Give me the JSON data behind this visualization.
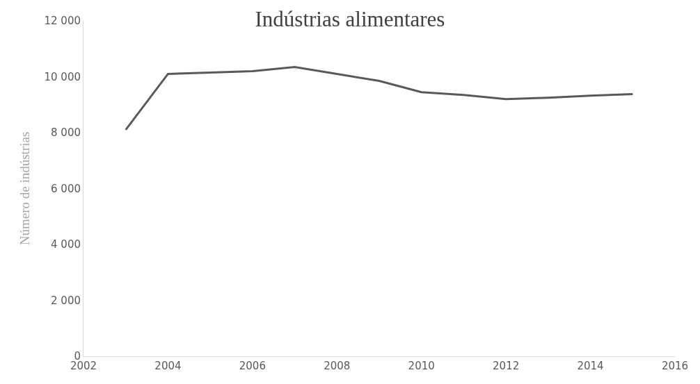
{
  "chart_data": {
    "type": "line",
    "title": "Indústrias alimentares",
    "ylabel": "Número de indústrias",
    "x": [
      2003,
      2004,
      2005,
      2006,
      2007,
      2008,
      2009,
      2010,
      2011,
      2012,
      2013,
      2014,
      2015
    ],
    "series": [
      {
        "color": "#595959",
        "values": [
          8100,
          10100,
          10150,
          10200,
          10350,
          10100,
          9850,
          9450,
          9350,
          9200,
          9250,
          9320,
          9380
        ]
      }
    ],
    "xlim": [
      2002,
      2016
    ],
    "xticks": [
      2002,
      2004,
      2006,
      2008,
      2010,
      2012,
      2014,
      2016
    ],
    "ylim": [
      0,
      12000
    ],
    "yticks": [
      {
        "value": 0,
        "label": "0"
      },
      {
        "value": 2000,
        "label": "2 000"
      },
      {
        "value": 4000,
        "label": "4 000"
      },
      {
        "value": 6000,
        "label": "6 000"
      },
      {
        "value": 8000,
        "label": "8 000"
      },
      {
        "value": 10000,
        "label": "10 000"
      },
      {
        "value": 12000,
        "label": "12 000"
      }
    ],
    "line_style": "solid"
  }
}
